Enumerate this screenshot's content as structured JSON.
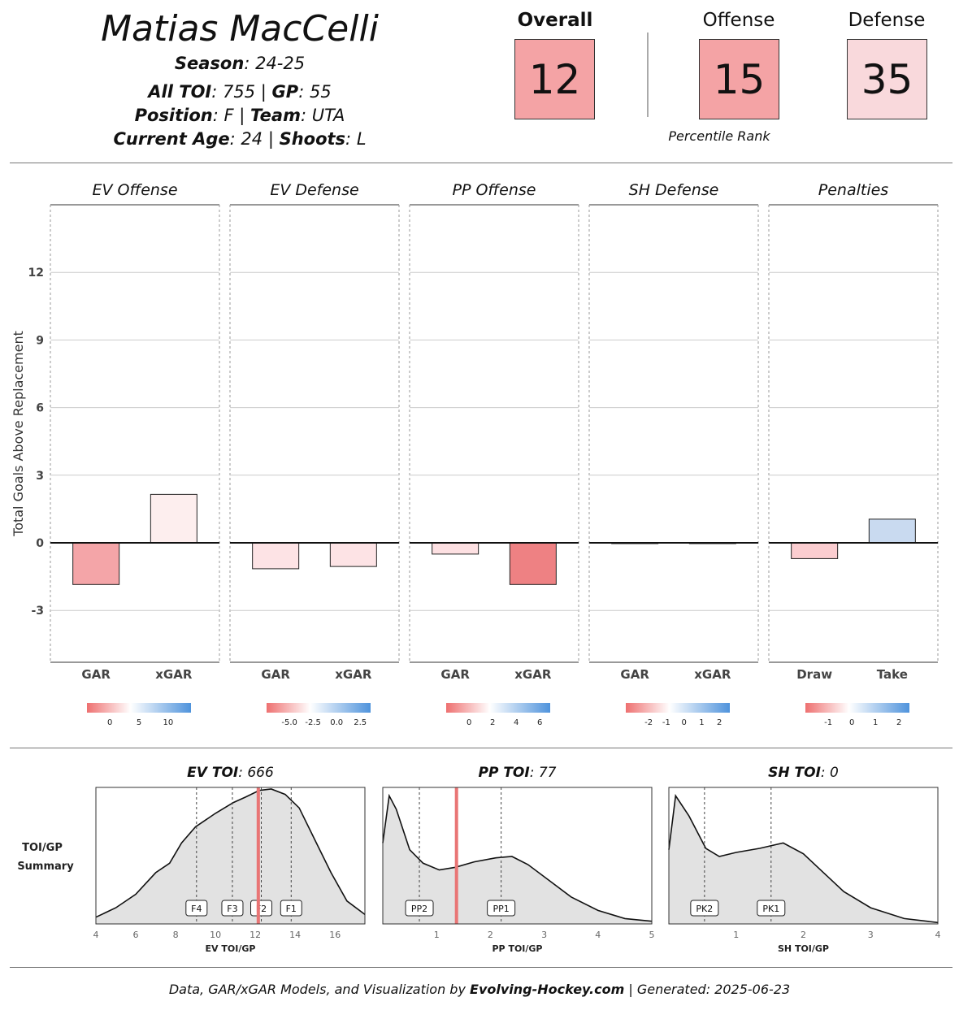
{
  "player": {
    "name": "Matias MacCelli",
    "season_label": "Season",
    "season": "24-25",
    "toi_label": "All TOI",
    "toi": "755",
    "gp_label": "GP",
    "gp": "55",
    "position_label": "Position",
    "position": "F",
    "team_label": "Team",
    "team": "UTA",
    "age_label": "Current Age",
    "age": "24",
    "shoots_label": "Shoots",
    "shoots": "L"
  },
  "ranks": {
    "overall_label": "Overall",
    "overall": "12",
    "offense_label": "Offense",
    "offense": "15",
    "defense_label": "Defense",
    "defense": "35",
    "caption": "Percentile Rank",
    "colors": {
      "overall": "#f4a3a5",
      "offense": "#f4a3a5",
      "defense": "#f9d9dc"
    }
  },
  "chart_data": [
    {
      "type": "bar",
      "ylabel": "Total Goals Above Replacement",
      "ylim": [
        -5.3,
        15
      ],
      "yticks": [
        -3,
        0,
        3,
        6,
        9,
        12
      ],
      "facets": [
        {
          "title": "EV Offense",
          "categories": [
            "GAR",
            "xGAR"
          ],
          "values": [
            -1.85,
            2.15
          ],
          "colors": [
            "#f4a5a8",
            "#fdeeee"
          ],
          "legend_ticks": [
            "0",
            "5",
            "10"
          ]
        },
        {
          "title": "EV Defense",
          "categories": [
            "GAR",
            "xGAR"
          ],
          "values": [
            -1.15,
            -1.05
          ],
          "colors": [
            "#fde3e5",
            "#fde3e5"
          ],
          "legend_ticks": [
            "-5.0",
            "-2.5",
            "0.0",
            "2.5"
          ]
        },
        {
          "title": "PP Offense",
          "categories": [
            "GAR",
            "xGAR"
          ],
          "values": [
            -0.5,
            -1.85
          ],
          "colors": [
            "#fde0e2",
            "#ee8183"
          ],
          "legend_ticks": [
            "0",
            "2",
            "4",
            "6"
          ]
        },
        {
          "title": "SH Defense",
          "categories": [
            "GAR",
            "xGAR"
          ],
          "values": [
            0,
            0
          ],
          "colors": [
            "#ffffff",
            "#ffffff"
          ],
          "legend_ticks": [
            "-2",
            "-1",
            "0",
            "1",
            "2"
          ]
        },
        {
          "title": "Penalties",
          "categories": [
            "Draw",
            "Take"
          ],
          "values": [
            -0.7,
            1.05
          ],
          "colors": [
            "#fbcdd0",
            "#c9daf0"
          ],
          "legend_ticks": [
            "-1",
            "0",
            "1",
            "2"
          ]
        }
      ]
    },
    {
      "type": "area",
      "row_label": "TOI/GP Summary",
      "panels": [
        {
          "title_label": "EV TOI",
          "title_value": "666",
          "xlabel": "EV TOI/GP",
          "xlim": [
            4,
            17.5
          ],
          "xticks": [
            4,
            6,
            8,
            10,
            12,
            14,
            16
          ],
          "player_value": 12.15,
          "markers": [
            {
              "label": "F4",
              "x": 9.05
            },
            {
              "label": "F3",
              "x": 10.85
            },
            {
              "label": "F2",
              "x": 12.3
            },
            {
              "label": "F1",
              "x": 13.8
            }
          ],
          "density": [
            [
              4,
              0.05
            ],
            [
              5,
              0.12
            ],
            [
              6,
              0.22
            ],
            [
              7,
              0.38
            ],
            [
              7.7,
              0.45
            ],
            [
              8.3,
              0.6
            ],
            [
              9,
              0.72
            ],
            [
              10,
              0.82
            ],
            [
              10.9,
              0.9
            ],
            [
              11.5,
              0.94
            ],
            [
              12.2,
              0.99
            ],
            [
              12.8,
              1.0
            ],
            [
              13.5,
              0.96
            ],
            [
              14.2,
              0.86
            ],
            [
              15,
              0.62
            ],
            [
              15.8,
              0.38
            ],
            [
              16.6,
              0.17
            ],
            [
              17.5,
              0.07
            ]
          ]
        },
        {
          "title_label": "PP TOI",
          "title_value": "77",
          "xlabel": "PP TOI/GP",
          "xlim": [
            0,
            5
          ],
          "xticks": [
            1,
            2,
            3,
            4,
            5
          ],
          "player_value": 1.37,
          "markers": [
            {
              "label": "PP2",
              "x": 0.68
            },
            {
              "label": "PP1",
              "x": 2.2
            }
          ],
          "density": [
            [
              0,
              0.6
            ],
            [
              0.12,
              0.95
            ],
            [
              0.25,
              0.85
            ],
            [
              0.5,
              0.55
            ],
            [
              0.75,
              0.45
            ],
            [
              1.05,
              0.4
            ],
            [
              1.35,
              0.42
            ],
            [
              1.7,
              0.46
            ],
            [
              2.1,
              0.49
            ],
            [
              2.4,
              0.5
            ],
            [
              2.7,
              0.44
            ],
            [
              3.1,
              0.32
            ],
            [
              3.5,
              0.2
            ],
            [
              4,
              0.1
            ],
            [
              4.5,
              0.04
            ],
            [
              5,
              0.02
            ]
          ]
        },
        {
          "title_label": "SH TOI",
          "title_value": "0",
          "xlabel": "SH TOI/GP",
          "xlim": [
            0,
            4
          ],
          "xticks": [
            1,
            2,
            3,
            4
          ],
          "player_value": null,
          "markers": [
            {
              "label": "PK2",
              "x": 0.53
            },
            {
              "label": "PK1",
              "x": 1.52
            }
          ],
          "density": [
            [
              0,
              0.55
            ],
            [
              0.1,
              0.95
            ],
            [
              0.3,
              0.8
            ],
            [
              0.55,
              0.56
            ],
            [
              0.75,
              0.5
            ],
            [
              1,
              0.53
            ],
            [
              1.35,
              0.56
            ],
            [
              1.7,
              0.6
            ],
            [
              2,
              0.52
            ],
            [
              2.3,
              0.38
            ],
            [
              2.6,
              0.24
            ],
            [
              3,
              0.12
            ],
            [
              3.5,
              0.04
            ],
            [
              4,
              0.01
            ]
          ]
        }
      ]
    }
  ],
  "footer": {
    "prefix": "Data, GAR/xGAR Models, and Visualization by",
    "brand": "Evolving-Hockey.com",
    "generated": "| Generated: 2025-06-23"
  }
}
